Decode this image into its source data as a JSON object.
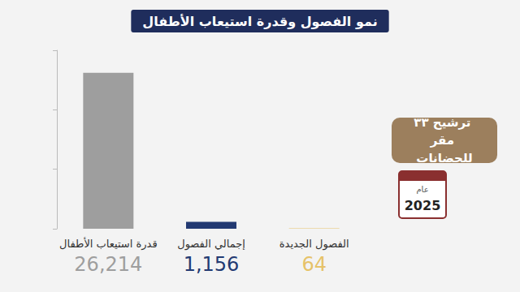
{
  "chart_data": {
    "type": "bar",
    "title": "نمو الفصول وقدرة استيعاب الأطفال",
    "categories": [
      "قدرة استيعاب الأطفال",
      "إجمالي الفصول",
      "الفصول الجديدة"
    ],
    "values": [
      26214,
      1156,
      64
    ],
    "value_labels": [
      "26,214",
      "1,156",
      "64"
    ],
    "colors": [
      "#9e9e9e",
      "#233a72",
      "#e6c268"
    ],
    "ylim": [
      0,
      30000
    ],
    "yticks": [
      0,
      10000,
      20000,
      30000
    ],
    "grid": false,
    "data_labels": true,
    "tick_labels": "x",
    "annotations": [
      "ترشيح ٣٣ مقر للحضانات",
      "عام",
      "2025"
    ]
  }
}
